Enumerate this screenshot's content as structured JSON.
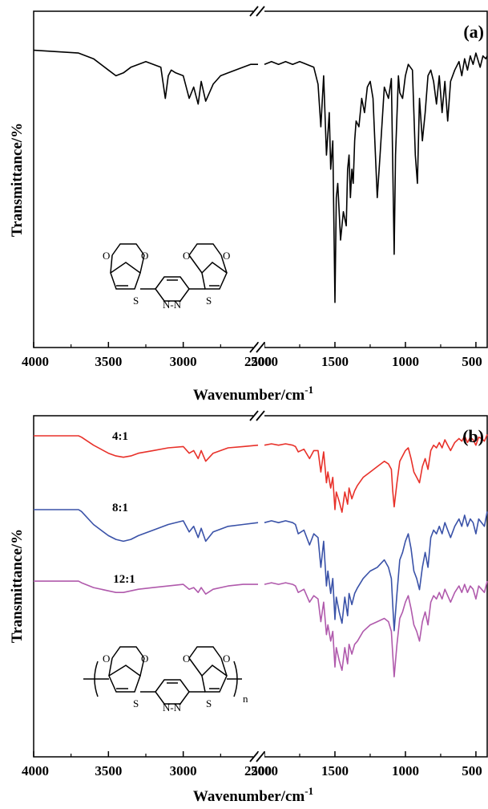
{
  "chart_data": [
    {
      "type": "line",
      "panel": "(a)",
      "xlabel": "Wavenumber/cm",
      "xlabel_sup": "-1",
      "ylabel": "Transmittance/%",
      "x_ticks": [
        "4000",
        "3500",
        "3000",
        "2500",
        "2000",
        "1500",
        "1000",
        "500"
      ],
      "x_axis": "reversed, broken between 2500 and 2000 cm-1",
      "y_ticks": [],
      "grid": false,
      "series": [
        {
          "color": "#000000",
          "x": [
            4000,
            3700,
            3600,
            3500,
            3450,
            3400,
            3350,
            3300,
            3250,
            3200,
            3150,
            3120,
            3100,
            3080,
            3050,
            3000,
            2960,
            2930,
            2900,
            2880,
            2850,
            2800,
            2750,
            2700,
            2650,
            2600,
            2550,
            2500,
            2000,
            1950,
            1900,
            1850,
            1800,
            1750,
            1700,
            1650,
            1620,
            1600,
            1580,
            1560,
            1540,
            1530,
            1515,
            1500,
            1490,
            1480,
            1460,
            1440,
            1420,
            1410,
            1400,
            1390,
            1380,
            1370,
            1360,
            1350,
            1330,
            1310,
            1290,
            1270,
            1250,
            1230,
            1200,
            1180,
            1150,
            1120,
            1100,
            1080,
            1070,
            1050,
            1040,
            1020,
            1000,
            980,
            950,
            930,
            915,
            900,
            880,
            860,
            840,
            820,
            800,
            780,
            760,
            740,
            720,
            700,
            680,
            650,
            620,
            600,
            580,
            560,
            540,
            520,
            500,
            470,
            450,
            430,
            420
          ],
          "y": [
            97,
            96,
            94,
            90,
            88,
            89,
            91,
            92,
            93,
            92,
            91,
            80,
            88,
            90,
            89,
            88,
            80,
            84,
            78,
            86,
            79,
            85,
            88,
            89,
            90,
            91,
            92,
            92,
            92,
            93,
            92,
            93,
            92,
            93,
            92,
            91,
            85,
            70,
            88,
            60,
            75,
            55,
            65,
            8,
            45,
            50,
            30,
            40,
            35,
            55,
            60,
            45,
            55,
            50,
            65,
            72,
            70,
            80,
            75,
            84,
            86,
            80,
            45,
            60,
            84,
            80,
            87,
            25,
            60,
            88,
            82,
            80,
            88,
            92,
            90,
            60,
            50,
            80,
            65,
            75,
            88,
            90,
            86,
            78,
            88,
            75,
            86,
            72,
            86,
            90,
            93,
            88,
            94,
            90,
            95,
            92,
            96,
            91,
            95,
            94,
            95
          ]
        }
      ],
      "legend": [],
      "inset": {
        "molecule_labels": [
          "O",
          "O",
          "S",
          "N-N",
          "O",
          "O",
          "S"
        ]
      }
    },
    {
      "type": "line",
      "panel": "(b)",
      "xlabel": "Wavenumber/cm",
      "xlabel_sup": "-1",
      "ylabel": "Transmittance/%",
      "x_ticks": [
        "4000",
        "3500",
        "3000",
        "2500",
        "2000",
        "1500",
        "1000",
        "500"
      ],
      "x_axis": "reversed, broken between 2500 and 2000 cm-1",
      "y_ticks": [],
      "grid": false,
      "series_labels": [
        "4:1",
        "8:1",
        "12:1"
      ],
      "series": [
        {
          "label": "4:1",
          "color": "#e8312a",
          "x": [
            4000,
            3800,
            3700,
            3680,
            3600,
            3500,
            3450,
            3400,
            3350,
            3300,
            3200,
            3100,
            3000,
            2960,
            2930,
            2900,
            2880,
            2850,
            2800,
            2700,
            2600,
            2500,
            2000,
            1950,
            1900,
            1850,
            1800,
            1780,
            1760,
            1720,
            1680,
            1650,
            1620,
            1600,
            1580,
            1560,
            1550,
            1530,
            1515,
            1500,
            1490,
            1470,
            1450,
            1430,
            1410,
            1400,
            1380,
            1360,
            1340,
            1300,
            1250,
            1200,
            1150,
            1120,
            1100,
            1090,
            1080,
            1060,
            1040,
            1020,
            1000,
            980,
            960,
            940,
            920,
            900,
            880,
            860,
            840,
            820,
            800,
            780,
            760,
            740,
            720,
            700,
            680,
            650,
            620,
            600,
            580,
            560,
            540,
            520,
            500,
            480,
            460,
            440,
            420
          ],
          "y": [
            97,
            97,
            97,
            96,
            90,
            84,
            82,
            81,
            82,
            84,
            86,
            88,
            89,
            84,
            86,
            80,
            86,
            78,
            84,
            88,
            89,
            90,
            90,
            91,
            90,
            91,
            90,
            89,
            85,
            87,
            80,
            86,
            86,
            70,
            85,
            62,
            70,
            58,
            66,
            42,
            55,
            48,
            40,
            55,
            46,
            58,
            50,
            56,
            60,
            66,
            70,
            74,
            78,
            76,
            72,
            56,
            44,
            62,
            78,
            82,
            86,
            88,
            80,
            70,
            66,
            62,
            74,
            80,
            72,
            86,
            90,
            88,
            92,
            88,
            94,
            90,
            86,
            92,
            95,
            93,
            97,
            92,
            96,
            94,
            90,
            96,
            95,
            93,
            98
          ]
        },
        {
          "label": "8:1",
          "color": "#3a52a8",
          "x": [
            4000,
            3800,
            3700,
            3680,
            3600,
            3500,
            3450,
            3400,
            3350,
            3300,
            3200,
            3100,
            3000,
            2960,
            2930,
            2900,
            2880,
            2850,
            2800,
            2700,
            2600,
            2500,
            2000,
            1950,
            1900,
            1850,
            1800,
            1780,
            1760,
            1720,
            1680,
            1650,
            1620,
            1600,
            1580,
            1560,
            1550,
            1530,
            1515,
            1500,
            1490,
            1470,
            1450,
            1430,
            1410,
            1400,
            1380,
            1360,
            1340,
            1300,
            1250,
            1200,
            1150,
            1120,
            1100,
            1090,
            1080,
            1060,
            1040,
            1020,
            1000,
            980,
            960,
            940,
            920,
            900,
            880,
            860,
            840,
            820,
            800,
            780,
            760,
            740,
            720,
            700,
            680,
            650,
            620,
            600,
            580,
            560,
            540,
            520,
            500,
            480,
            460,
            440,
            420
          ],
          "y": [
            97,
            97,
            97,
            96,
            89,
            83,
            81,
            80,
            81,
            83,
            86,
            89,
            91,
            85,
            88,
            82,
            87,
            80,
            85,
            88,
            89,
            90,
            90,
            91,
            90,
            91,
            90,
            89,
            84,
            86,
            78,
            84,
            82,
            66,
            80,
            56,
            64,
            52,
            60,
            38,
            50,
            42,
            36,
            50,
            40,
            52,
            46,
            52,
            55,
            60,
            64,
            66,
            70,
            66,
            60,
            46,
            32,
            52,
            70,
            74,
            80,
            84,
            76,
            64,
            60,
            54,
            66,
            74,
            66,
            82,
            86,
            84,
            88,
            84,
            90,
            86,
            82,
            88,
            92,
            88,
            94,
            88,
            92,
            90,
            84,
            92,
            90,
            88,
            96
          ]
        },
        {
          "label": "12:1",
          "color": "#b05aac",
          "x": [
            4000,
            3800,
            3700,
            3680,
            3600,
            3500,
            3450,
            3400,
            3350,
            3300,
            3200,
            3100,
            3000,
            2960,
            2930,
            2900,
            2880,
            2850,
            2800,
            2700,
            2600,
            2500,
            2000,
            1950,
            1900,
            1850,
            1800,
            1780,
            1760,
            1720,
            1680,
            1650,
            1620,
            1600,
            1580,
            1560,
            1550,
            1530,
            1515,
            1500,
            1490,
            1470,
            1450,
            1430,
            1410,
            1400,
            1380,
            1360,
            1340,
            1300,
            1250,
            1200,
            1150,
            1120,
            1100,
            1090,
            1080,
            1060,
            1040,
            1020,
            1000,
            980,
            960,
            940,
            920,
            900,
            880,
            860,
            840,
            820,
            800,
            780,
            760,
            740,
            720,
            700,
            680,
            650,
            620,
            600,
            580,
            560,
            540,
            520,
            500,
            480,
            460,
            440,
            420
          ],
          "y": [
            97,
            97,
            97,
            96,
            93,
            91,
            90,
            90,
            91,
            92,
            93,
            94,
            95,
            92,
            93,
            90,
            93,
            89,
            92,
            94,
            95,
            95,
            95,
            96,
            95,
            96,
            95,
            94,
            90,
            92,
            84,
            88,
            86,
            72,
            84,
            64,
            70,
            60,
            66,
            44,
            56,
            48,
            42,
            56,
            46,
            58,
            52,
            58,
            60,
            66,
            70,
            72,
            74,
            72,
            66,
            52,
            38,
            58,
            74,
            78,
            84,
            88,
            80,
            70,
            66,
            60,
            72,
            78,
            70,
            84,
            88,
            86,
            90,
            86,
            92,
            88,
            84,
            90,
            94,
            90,
            95,
            90,
            94,
            92,
            86,
            94,
            92,
            90,
            97
          ]
        }
      ],
      "legend": [],
      "inset": {
        "molecule_labels": [
          "O",
          "O",
          "S",
          "N-N",
          "O",
          "O",
          "S",
          "n"
        ]
      }
    }
  ]
}
